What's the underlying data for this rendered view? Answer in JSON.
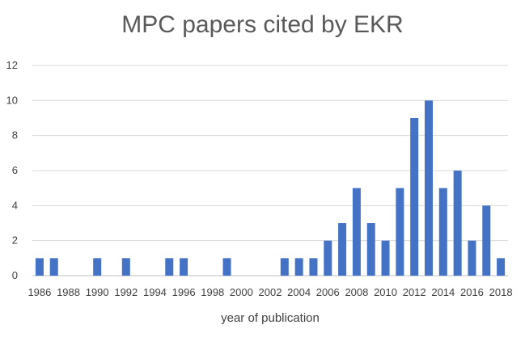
{
  "chart_data": {
    "type": "bar",
    "title": "MPC papers cited by EKR",
    "xlabel": "year of publication",
    "ylabel": "",
    "ylim": [
      0,
      12
    ],
    "yticks": [
      0,
      2,
      4,
      6,
      8,
      10,
      12
    ],
    "xlim": [
      1986,
      2018
    ],
    "xticks": [
      1986,
      1988,
      1990,
      1992,
      1994,
      1996,
      1998,
      2000,
      2002,
      2004,
      2006,
      2008,
      2010,
      2012,
      2014,
      2016,
      2018
    ],
    "grid": true,
    "bar_color": "#4472C4",
    "categories": [
      1986,
      1987,
      1988,
      1989,
      1990,
      1991,
      1992,
      1993,
      1994,
      1995,
      1996,
      1997,
      1998,
      1999,
      2000,
      2001,
      2002,
      2003,
      2004,
      2005,
      2006,
      2007,
      2008,
      2009,
      2010,
      2011,
      2012,
      2013,
      2014,
      2015,
      2016,
      2017,
      2018
    ],
    "values": [
      1,
      1,
      0,
      0,
      1,
      0,
      1,
      0,
      0,
      1,
      1,
      0,
      0,
      1,
      0,
      0,
      0,
      1,
      1,
      1,
      2,
      3,
      5,
      3,
      2,
      5,
      9,
      10,
      5,
      6,
      2,
      4,
      1
    ]
  }
}
